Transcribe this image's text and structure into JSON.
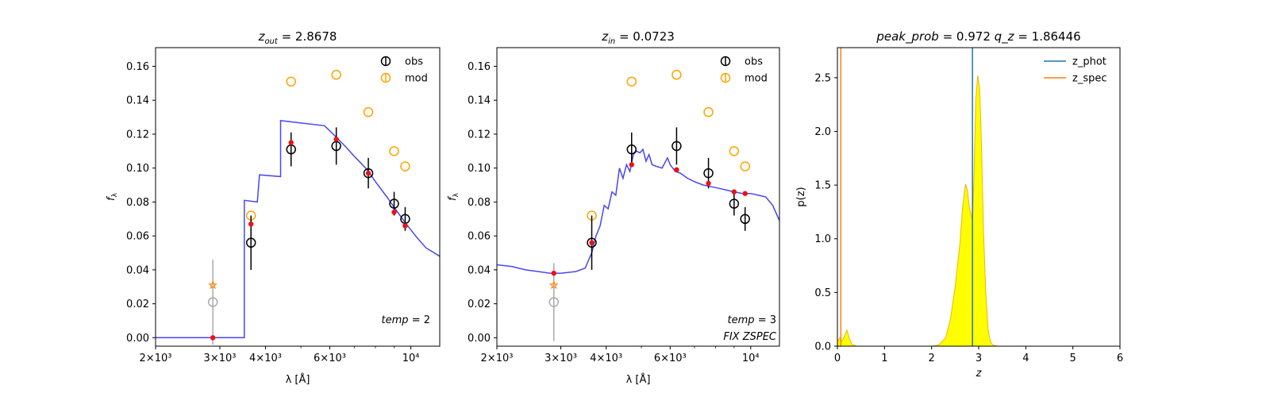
{
  "chart_data": [
    {
      "type": "scatter",
      "title": "z_out = 2.8678",
      "title_var": "z",
      "title_sub": "out",
      "title_value": "2.8678",
      "xlabel": "λ [Å]",
      "ylabel": "f_λ",
      "xscale": "log",
      "xlim": [
        2000,
        12000
      ],
      "ylim": [
        -0.005,
        0.171
      ],
      "xticks": [
        {
          "value": 2000,
          "label": "2×10³"
        },
        {
          "value": 3000,
          "label": "3×10³"
        },
        {
          "value": 4000,
          "label": "4×10³"
        },
        {
          "value": 6000,
          "label": "6×10³"
        },
        {
          "value": 10000,
          "label": "10⁴"
        }
      ],
      "yticks": [
        0.0,
        0.02,
        0.04,
        0.06,
        0.08,
        0.1,
        0.12,
        0.14,
        0.16
      ],
      "ytick_labels": [
        "0.00",
        "0.02",
        "0.04",
        "0.06",
        "0.08",
        "0.10",
        "0.12",
        "0.14",
        "0.16"
      ],
      "annotations": [
        "temp = 2"
      ],
      "legend": {
        "position": "top-right",
        "entries": [
          "obs",
          "mod"
        ]
      },
      "template_curve": {
        "color": "#3333ee",
        "x": [
          2000,
          3500,
          3500,
          3800,
          3850,
          4400,
          4400,
          5800,
          6000,
          6600,
          7000,
          7600,
          8000,
          8600,
          9200,
          9800,
          10400,
          11000,
          12000
        ],
        "y": [
          0.0,
          0.0,
          0.081,
          0.08,
          0.096,
          0.095,
          0.128,
          0.125,
          0.122,
          0.113,
          0.107,
          0.099,
          0.092,
          0.083,
          0.074,
          0.066,
          0.059,
          0.053,
          0.048
        ]
      },
      "series": [
        {
          "name": "obs",
          "color": "#000000",
          "x": [
            3650,
            4700,
            6250,
            7650,
            9000,
            9650
          ],
          "y": [
            0.056,
            0.111,
            0.113,
            0.097,
            0.079,
            0.07
          ],
          "err": [
            0.016,
            0.01,
            0.011,
            0.009,
            0.007,
            0.007
          ]
        },
        {
          "name": "mod",
          "color": "#ffa500",
          "x": [
            3650,
            4700,
            6250,
            7650,
            9000,
            9650
          ],
          "y": [
            0.072,
            0.151,
            0.155,
            0.133,
            0.11,
            0.101
          ]
        }
      ],
      "model_points": {
        "color": "#ee1111",
        "x": [
          2870,
          3650,
          4700,
          6250,
          7650,
          9000,
          9650
        ],
        "y": [
          0.0,
          0.067,
          0.115,
          0.117,
          0.097,
          0.074,
          0.066
        ]
      },
      "dropout_point": {
        "x": 2870,
        "y": 0.021,
        "err": 0.025,
        "color": "#aaaaaa"
      },
      "star_point": {
        "x": 2870,
        "y": 0.031,
        "color": "#ff8c1a"
      }
    },
    {
      "type": "scatter",
      "title": "z_in = 0.0723",
      "title_var": "z",
      "title_sub": "in",
      "title_value": "0.0723",
      "xlabel": "λ [Å]",
      "ylabel": "f_λ",
      "xscale": "log",
      "xlim": [
        2000,
        12000
      ],
      "ylim": [
        -0.005,
        0.171
      ],
      "xticks": [
        {
          "value": 2000,
          "label": "2×10³"
        },
        {
          "value": 3000,
          "label": "3×10³"
        },
        {
          "value": 4000,
          "label": "4×10³"
        },
        {
          "value": 6000,
          "label": "6×10³"
        },
        {
          "value": 10000,
          "label": "10⁴"
        }
      ],
      "yticks": [
        0.0,
        0.02,
        0.04,
        0.06,
        0.08,
        0.1,
        0.12,
        0.14,
        0.16
      ],
      "ytick_labels": [
        "0.00",
        "0.02",
        "0.04",
        "0.06",
        "0.08",
        "0.10",
        "0.12",
        "0.14",
        "0.16"
      ],
      "annotations": [
        "temp = 3",
        "FIX ZSPEC"
      ],
      "legend": {
        "position": "top-right",
        "entries": [
          "obs",
          "mod"
        ]
      },
      "template_curve": {
        "color": "#3333ee",
        "x": [
          2000,
          2200,
          2400,
          2600,
          2800,
          3000,
          3300,
          3500,
          3650,
          3750,
          3850,
          3950,
          4050,
          4150,
          4250,
          4350,
          4450,
          4550,
          4650,
          4750,
          4850,
          4950,
          5050,
          5150,
          5250,
          5350,
          5500,
          5700,
          5900,
          6000,
          6200,
          6400,
          6700,
          7000,
          7400,
          7800,
          8200,
          8600,
          9000,
          9500,
          10000,
          10500,
          11000,
          11500,
          12000
        ],
        "y": [
          0.043,
          0.042,
          0.04,
          0.039,
          0.038,
          0.038,
          0.039,
          0.041,
          0.05,
          0.06,
          0.066,
          0.078,
          0.076,
          0.086,
          0.084,
          0.1,
          0.094,
          0.102,
          0.098,
          0.108,
          0.11,
          0.109,
          0.111,
          0.104,
          0.108,
          0.102,
          0.101,
          0.1,
          0.106,
          0.102,
          0.098,
          0.097,
          0.094,
          0.092,
          0.09,
          0.089,
          0.088,
          0.087,
          0.086,
          0.085,
          0.085,
          0.084,
          0.083,
          0.078,
          0.069
        ]
      },
      "series": [
        {
          "name": "obs",
          "color": "#000000",
          "x": [
            3650,
            4700,
            6250,
            7650,
            9000,
            9650
          ],
          "y": [
            0.056,
            0.111,
            0.113,
            0.097,
            0.079,
            0.07
          ],
          "err": [
            0.016,
            0.01,
            0.011,
            0.009,
            0.007,
            0.007
          ]
        },
        {
          "name": "mod",
          "color": "#ffa500",
          "x": [
            3650,
            4700,
            6250,
            7650,
            9000,
            9650
          ],
          "y": [
            0.072,
            0.151,
            0.155,
            0.133,
            0.11,
            0.101
          ]
        }
      ],
      "model_points": {
        "color": "#ee1111",
        "x": [
          2870,
          3650,
          4700,
          6250,
          7650,
          9000,
          9650
        ],
        "y": [
          0.038,
          0.056,
          0.102,
          0.099,
          0.091,
          0.086,
          0.085
        ]
      },
      "dropout_point": {
        "x": 2870,
        "y": 0.021,
        "err": 0.023,
        "color": "#aaaaaa"
      },
      "star_point": {
        "x": 2870,
        "y": 0.031,
        "color": "#ff8c1a"
      }
    },
    {
      "type": "area",
      "title_parts": [
        {
          "var": "peak_prob",
          "value": "0.972"
        },
        {
          "var": "q_z",
          "value": "1.86446"
        }
      ],
      "xlabel": "z",
      "ylabel": "p(z)",
      "xlim": [
        0,
        6
      ],
      "ylim": [
        0,
        2.78
      ],
      "xticks": [
        0,
        1,
        2,
        3,
        4,
        5,
        6
      ],
      "yticks": [
        0.0,
        0.5,
        1.0,
        1.5,
        2.0,
        2.5
      ],
      "ytick_labels": [
        "0.0",
        "0.5",
        "1.0",
        "1.5",
        "2.0",
        "2.5"
      ],
      "legend": {
        "position": "top-right",
        "entries": [
          "z_phot",
          "z_spec"
        ]
      },
      "z_phot": 2.8678,
      "z_spec": 0.0723,
      "z_phot_color": "#1f77b4",
      "z_spec_color": "#ff7f0e",
      "pdf_fill": "#ffff00",
      "pdf_line": "#f2b400",
      "pdf": {
        "z": [
          0.0,
          0.05,
          0.1,
          0.15,
          0.2,
          0.25,
          0.3,
          0.4,
          0.6,
          1.0,
          1.5,
          2.0,
          2.15,
          2.3,
          2.4,
          2.5,
          2.6,
          2.66,
          2.72,
          2.76,
          2.8,
          2.84,
          2.87,
          2.9,
          2.94,
          2.98,
          3.02,
          3.06,
          3.1,
          3.15,
          3.2,
          3.25,
          3.3,
          3.4,
          3.6,
          4.0,
          5.0
        ],
        "p": [
          0.04,
          0.08,
          0.05,
          0.09,
          0.15,
          0.08,
          0.02,
          0.0,
          0.0,
          0.0,
          0.0,
          0.0,
          0.01,
          0.08,
          0.25,
          0.55,
          0.95,
          1.3,
          1.51,
          1.45,
          1.3,
          1.22,
          1.17,
          1.6,
          2.3,
          2.52,
          2.4,
          1.85,
          1.1,
          0.5,
          0.15,
          0.04,
          0.01,
          0.0,
          0.0,
          0.0,
          0.0
        ]
      }
    }
  ]
}
